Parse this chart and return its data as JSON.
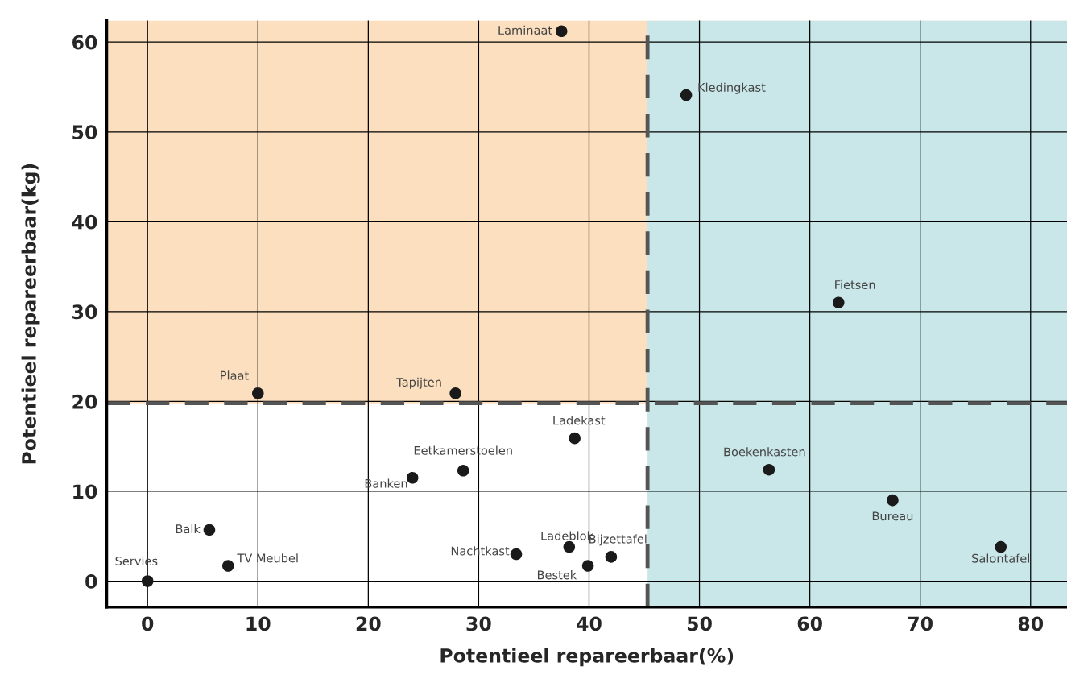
{
  "chart_data": {
    "type": "scatter",
    "xlabel": "Potentieel repareerbaar(%)",
    "ylabel": "Potentieel repareerbaar(kg)",
    "xlim": [
      -3.7,
      83.3
    ],
    "ylim": [
      -2.9,
      62.4
    ],
    "xticks": [
      0,
      10,
      20,
      30,
      40,
      50,
      60,
      70,
      80
    ],
    "yticks": [
      0,
      10,
      20,
      30,
      40,
      50,
      60
    ],
    "grid": true,
    "marker": "circle",
    "series": [
      {
        "color": "#1a1a1a",
        "x": [
          37.5,
          48.8,
          62.6,
          10.0,
          27.9,
          38.7,
          28.6,
          24.0,
          56.3,
          67.5,
          77.3,
          5.6,
          7.3,
          0,
          33.4,
          38.2,
          39.9,
          42.0
        ],
        "values": [
          61.2,
          54.1,
          31.0,
          20.9,
          20.9,
          15.9,
          12.3,
          11.5,
          12.4,
          9.0,
          3.8,
          5.7,
          1.7,
          0,
          3.0,
          3.8,
          1.7,
          2.7
        ]
      }
    ],
    "annotations": [
      {
        "text": "Laminaat",
        "x": 37.5,
        "y": 61.2
      },
      {
        "text": "Kledingkast",
        "x": 48.8,
        "y": 54.1
      },
      {
        "text": "Fietsen",
        "x": 62.6,
        "y": 31.0
      },
      {
        "text": "Plaat",
        "x": 10.0,
        "y": 20.9
      },
      {
        "text": "Tapijten",
        "x": 27.9,
        "y": 20.9
      },
      {
        "text": "Ladekast",
        "x": 38.7,
        "y": 15.9
      },
      {
        "text": "Eetkamerstoelen",
        "x": 28.6,
        "y": 12.3
      },
      {
        "text": "Banken",
        "x": 24.0,
        "y": 11.5
      },
      {
        "text": "Boekenkasten",
        "x": 56.3,
        "y": 12.4
      },
      {
        "text": "Bureau",
        "x": 67.5,
        "y": 9.0
      },
      {
        "text": "Salontafel",
        "x": 77.3,
        "y": 3.8
      },
      {
        "text": "Balk",
        "x": 5.6,
        "y": 5.7
      },
      {
        "text": "TV Meubel",
        "x": 7.3,
        "y": 1.7
      },
      {
        "text": "Servies",
        "x": 0,
        "y": 0
      },
      {
        "text": "Nachtkast",
        "x": 33.4,
        "y": 3.0
      },
      {
        "text": "Ladeblok",
        "x": 38.2,
        "y": 3.8
      },
      {
        "text": "Bestek",
        "x": 39.9,
        "y": 1.7
      },
      {
        "text": "Bijzettafel",
        "x": 42.0,
        "y": 2.7
      }
    ],
    "bands": [
      {
        "axis": "y",
        "from": 19.8,
        "to": 62.4,
        "color": "#fcdfbe"
      },
      {
        "axis": "x",
        "from": 45.3,
        "to": 83.3,
        "color": "#c9e7e9"
      }
    ],
    "ref_lines": [
      {
        "axis": "x",
        "value": 45.3,
        "color": "#555555",
        "line_style": "dashed"
      },
      {
        "axis": "y",
        "value": 19.8,
        "color": "#555555",
        "line_style": "dashed"
      }
    ]
  }
}
